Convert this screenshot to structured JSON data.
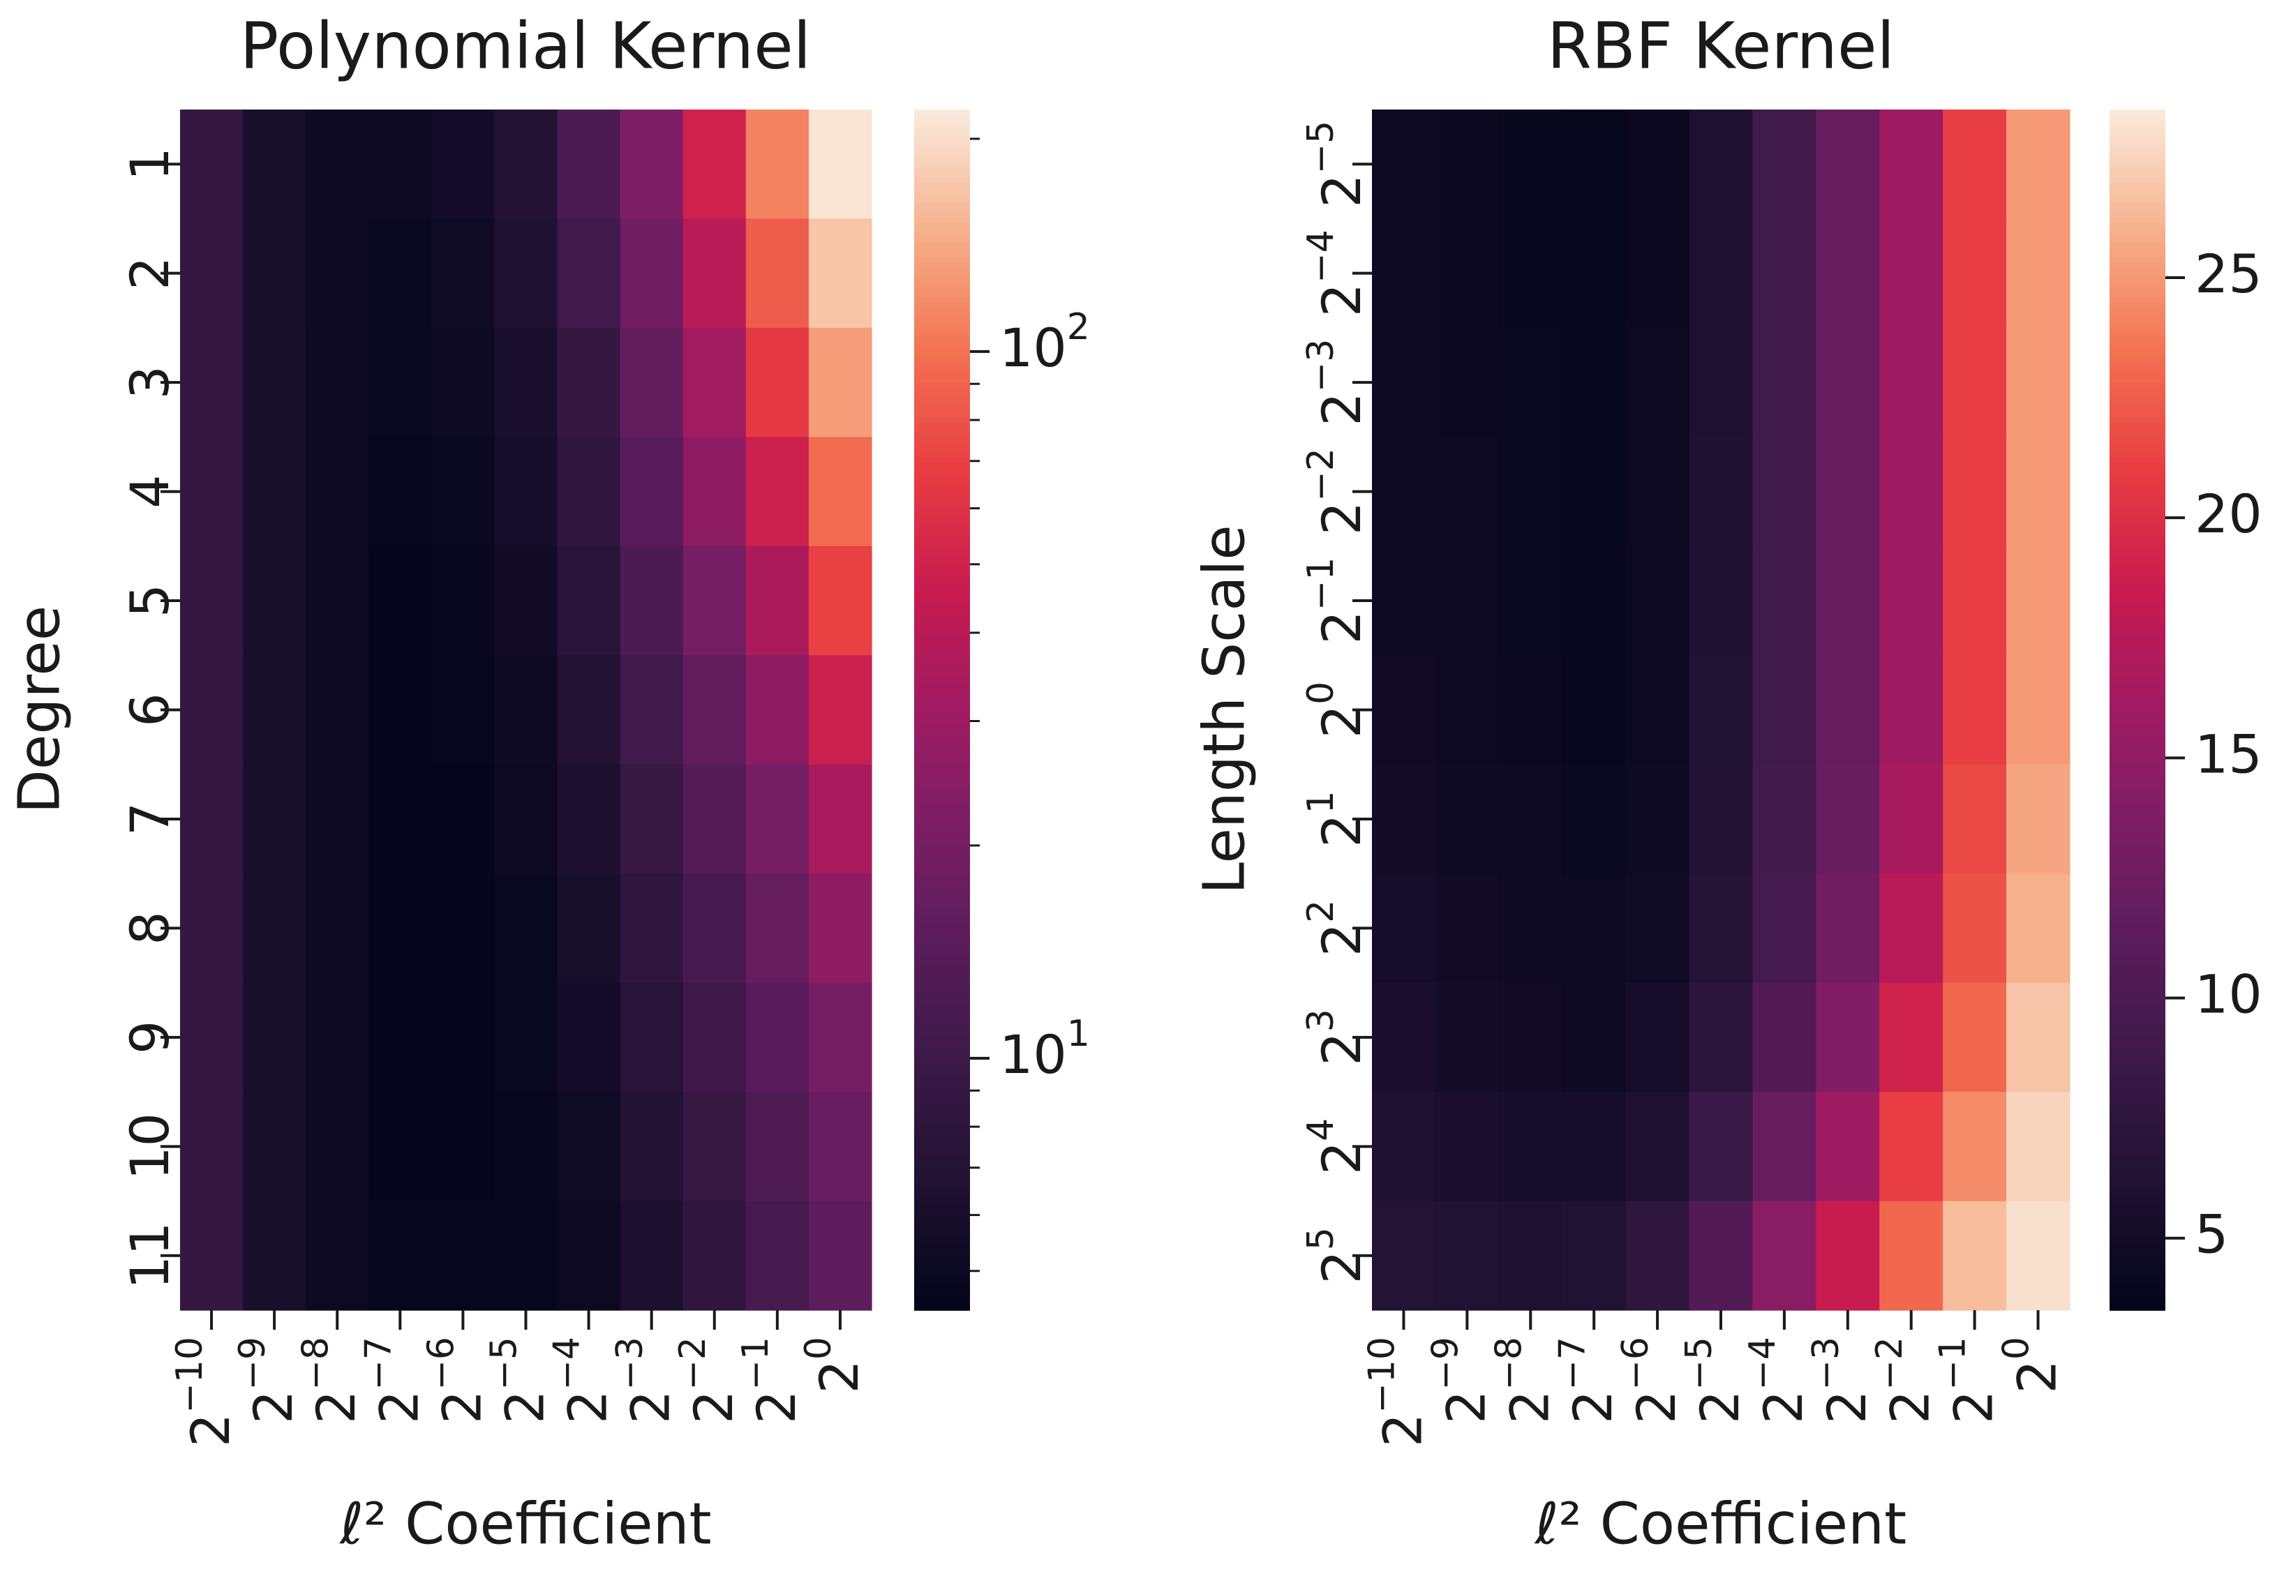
{
  "chart_data": [
    {
      "type": "heatmap",
      "title": "Polynomial Kernel",
      "xlabel": "ℓ² Coefficient",
      "ylabel": "Degree",
      "x_tick_labels": [
        {
          "base": "2",
          "exp": "−10"
        },
        {
          "base": "2",
          "exp": "−9"
        },
        {
          "base": "2",
          "exp": "−8"
        },
        {
          "base": "2",
          "exp": "−7"
        },
        {
          "base": "2",
          "exp": "−6"
        },
        {
          "base": "2",
          "exp": "−5"
        },
        {
          "base": "2",
          "exp": "−4"
        },
        {
          "base": "2",
          "exp": "−3"
        },
        {
          "base": "2",
          "exp": "−2"
        },
        {
          "base": "2",
          "exp": "−1"
        },
        {
          "base": "2",
          "exp": "0"
        }
      ],
      "y_tick_labels": [
        {
          "base": "1",
          "exp": ""
        },
        {
          "base": "2",
          "exp": ""
        },
        {
          "base": "3",
          "exp": ""
        },
        {
          "base": "4",
          "exp": ""
        },
        {
          "base": "5",
          "exp": ""
        },
        {
          "base": "6",
          "exp": ""
        },
        {
          "base": "7",
          "exp": ""
        },
        {
          "base": "8",
          "exp": ""
        },
        {
          "base": "9",
          "exp": ""
        },
        {
          "base": "10",
          "exp": ""
        },
        {
          "base": "11",
          "exp": ""
        }
      ],
      "colorbar": {
        "scale": "log",
        "range": [
          4.4,
          220
        ],
        "major_ticks": [
          {
            "value": 10,
            "base": "10",
            "exp": "1"
          },
          {
            "value": 100,
            "base": "10",
            "exp": "2"
          }
        ],
        "minor_ticks": [
          5,
          6,
          7,
          8,
          9,
          20,
          30,
          40,
          50,
          60,
          70,
          80,
          90,
          200
        ]
      },
      "values": [
        [
          9.0,
          6.0,
          5.2,
          5.0,
          5.6,
          7.0,
          12,
          22,
          50,
          110,
          210
        ],
        [
          9.0,
          6.0,
          5.1,
          4.9,
          5.3,
          6.6,
          10.5,
          19,
          40,
          85,
          170
        ],
        [
          9.0,
          6.0,
          5.0,
          4.8,
          5.1,
          6.1,
          9.0,
          16,
          32,
          65,
          130
        ],
        [
          9.0,
          6.0,
          5.0,
          4.6,
          4.9,
          5.7,
          8.2,
          14,
          26,
          48,
          95
        ],
        [
          9.0,
          6.0,
          5.0,
          4.5,
          4.7,
          5.4,
          7.6,
          12,
          20,
          35,
          70
        ],
        [
          9.0,
          6.0,
          5.0,
          4.5,
          4.6,
          5.2,
          7.0,
          10.5,
          16,
          26,
          48
        ],
        [
          9.0,
          6.0,
          5.0,
          4.5,
          4.5,
          5.0,
          6.4,
          9.2,
          13.5,
          20,
          34
        ],
        [
          9.0,
          6.0,
          5.0,
          4.5,
          4.5,
          4.9,
          6.0,
          8.3,
          11.5,
          16.5,
          26
        ],
        [
          9.0,
          6.0,
          5.0,
          4.5,
          4.5,
          4.8,
          5.6,
          7.5,
          10.2,
          14,
          20
        ],
        [
          9.0,
          6.0,
          5.0,
          4.5,
          4.5,
          4.7,
          5.3,
          6.9,
          9.2,
          12.5,
          17
        ],
        [
          9.0,
          6.0,
          5.0,
          4.6,
          4.6,
          4.6,
          5.0,
          6.4,
          8.4,
          11.3,
          15
        ]
      ]
    },
    {
      "type": "heatmap",
      "title": "RBF Kernel",
      "xlabel": "ℓ² Coefficient",
      "ylabel": "Length Scale",
      "x_tick_labels": [
        {
          "base": "2",
          "exp": "−10"
        },
        {
          "base": "2",
          "exp": "−9"
        },
        {
          "base": "2",
          "exp": "−8"
        },
        {
          "base": "2",
          "exp": "−7"
        },
        {
          "base": "2",
          "exp": "−6"
        },
        {
          "base": "2",
          "exp": "−5"
        },
        {
          "base": "2",
          "exp": "−4"
        },
        {
          "base": "2",
          "exp": "−3"
        },
        {
          "base": "2",
          "exp": "−2"
        },
        {
          "base": "2",
          "exp": "−1"
        },
        {
          "base": "2",
          "exp": "0"
        }
      ],
      "y_tick_labels": [
        {
          "base": "2",
          "exp": "−5"
        },
        {
          "base": "2",
          "exp": "−4"
        },
        {
          "base": "2",
          "exp": "−3"
        },
        {
          "base": "2",
          "exp": "−2"
        },
        {
          "base": "2",
          "exp": "−1"
        },
        {
          "base": "2",
          "exp": "0"
        },
        {
          "base": "2",
          "exp": "1"
        },
        {
          "base": "2",
          "exp": "2"
        },
        {
          "base": "2",
          "exp": "3"
        },
        {
          "base": "2",
          "exp": "4"
        },
        {
          "base": "2",
          "exp": "5"
        }
      ],
      "colorbar": {
        "scale": "linear",
        "range": [
          3.5,
          28.5
        ],
        "major_ticks": [
          {
            "value": 5,
            "base": "5",
            "exp": ""
          },
          {
            "value": 10,
            "base": "10",
            "exp": ""
          },
          {
            "value": 15,
            "base": "15",
            "exp": ""
          },
          {
            "value": 20,
            "base": "20",
            "exp": ""
          },
          {
            "value": 25,
            "base": "25",
            "exp": ""
          }
        ],
        "minor_ticks": []
      },
      "values": [
        [
          4.5,
          4.2,
          4.0,
          3.8,
          4.2,
          6.0,
          9.0,
          12.0,
          16.0,
          21.0,
          25.0
        ],
        [
          4.5,
          4.2,
          4.0,
          3.8,
          4.2,
          6.0,
          9.0,
          12.0,
          16.0,
          21.0,
          25.0
        ],
        [
          4.5,
          4.2,
          4.1,
          3.9,
          4.3,
          6.0,
          9.0,
          12.0,
          16.0,
          21.0,
          25.0
        ],
        [
          4.6,
          4.3,
          4.1,
          3.9,
          4.3,
          6.1,
          9.0,
          12.0,
          16.0,
          21.0,
          25.0
        ],
        [
          4.6,
          4.3,
          4.1,
          4.0,
          4.4,
          6.1,
          9.0,
          12.0,
          16.0,
          21.0,
          25.0
        ],
        [
          4.8,
          4.4,
          4.2,
          4.0,
          4.4,
          6.2,
          9.0,
          12.0,
          16.0,
          21.0,
          25.0
        ],
        [
          5.0,
          4.6,
          4.3,
          4.1,
          4.5,
          6.3,
          9.2,
          12.2,
          16.5,
          21.5,
          25.5
        ],
        [
          5.2,
          4.8,
          4.5,
          4.3,
          4.7,
          6.6,
          9.5,
          12.8,
          17.5,
          22.0,
          26.0
        ],
        [
          5.6,
          5.1,
          4.8,
          4.6,
          5.2,
          7.2,
          10.5,
          14.0,
          19.0,
          23.0,
          26.8
        ],
        [
          6.0,
          5.6,
          5.3,
          5.2,
          6.0,
          8.5,
          12.0,
          16.0,
          21.0,
          24.5,
          27.5
        ],
        [
          6.5,
          6.2,
          6.0,
          6.2,
          7.5,
          10.5,
          14.5,
          18.5,
          23.0,
          26.5,
          28.0
        ]
      ]
    }
  ]
}
